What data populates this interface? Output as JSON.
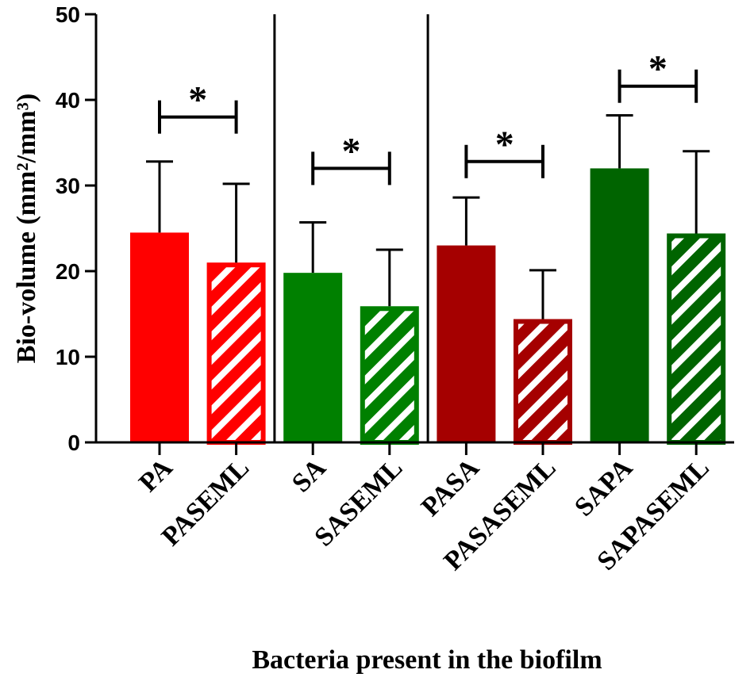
{
  "chart_data": {
    "type": "bar",
    "xlabel": "Bacteria present in the biofilm",
    "ylabel": "Bio-volume (mm²/mm³)",
    "ylim": [
      0,
      50
    ],
    "yticks": [
      "0",
      "10",
      "20",
      "30",
      "40",
      "50"
    ],
    "grid": false,
    "legend": "none",
    "categories": [
      "PA",
      "PASEML",
      "SA",
      "SASEML",
      "PASA",
      "PASASEML",
      "SAPA",
      "SAPASEML"
    ],
    "values": [
      24.5,
      21,
      19.8,
      15.9,
      23,
      14.4,
      32,
      24.4
    ],
    "error_upper": [
      32.8,
      30.2,
      25.7,
      22.5,
      28.6,
      20.1,
      38.2,
      34.0
    ],
    "colors": [
      "#ff0000",
      "#ff0000",
      "#008000",
      "#008000",
      "#a50000",
      "#a50000",
      "#006400",
      "#006400"
    ],
    "hatched": [
      false,
      true,
      false,
      true,
      false,
      true,
      false,
      true
    ],
    "group_separators_after": [
      1,
      3
    ],
    "significance": [
      {
        "left": 0,
        "right": 1,
        "y": 38.0,
        "label": "*"
      },
      {
        "left": 2,
        "right": 3,
        "y": 32.0,
        "label": "*"
      },
      {
        "left": 4,
        "right": 5,
        "y": 32.8,
        "label": "*"
      },
      {
        "left": 6,
        "right": 7,
        "y": 41.6,
        "label": "*"
      }
    ]
  }
}
